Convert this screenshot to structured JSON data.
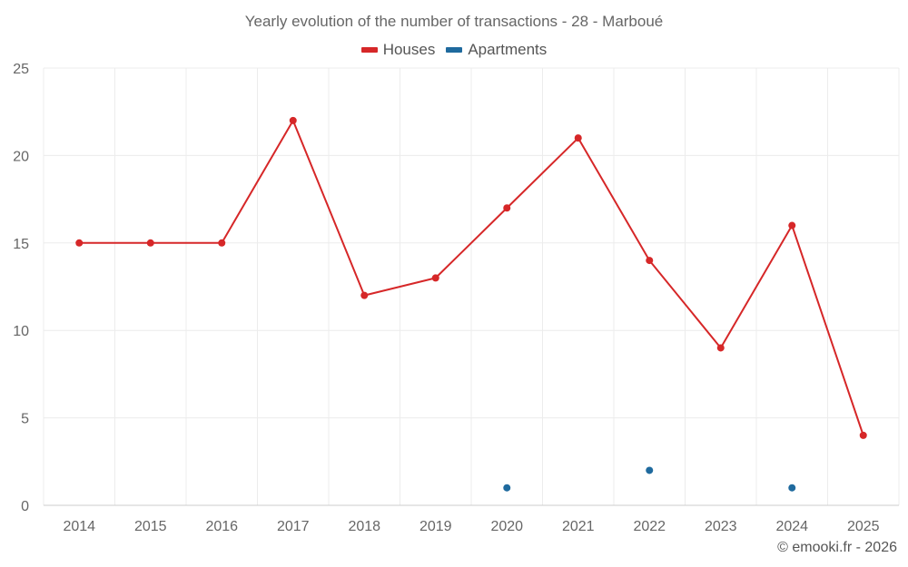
{
  "chart_data": {
    "type": "line",
    "title": "Yearly evolution of the number of transactions - 28 - Marboué",
    "xlabel": "",
    "ylabel": "",
    "categories": [
      "2014",
      "2015",
      "2016",
      "2017",
      "2018",
      "2019",
      "2020",
      "2021",
      "2022",
      "2023",
      "2024",
      "2025"
    ],
    "ylim": [
      0,
      25
    ],
    "yticks": [
      0,
      5,
      10,
      15,
      20,
      25
    ],
    "grid": true,
    "legend_position": "top-center",
    "series": [
      {
        "name": "Houses",
        "color": "#d62728",
        "mode": "line+markers",
        "values": [
          15,
          15,
          15,
          22,
          12,
          13,
          17,
          21,
          14,
          9,
          16,
          4
        ]
      },
      {
        "name": "Apartments",
        "color": "#1f6a9e",
        "mode": "markers",
        "values": [
          null,
          null,
          null,
          null,
          null,
          null,
          1,
          null,
          2,
          null,
          1,
          null
        ]
      }
    ]
  },
  "credit": "© emooki.fr - 2026"
}
